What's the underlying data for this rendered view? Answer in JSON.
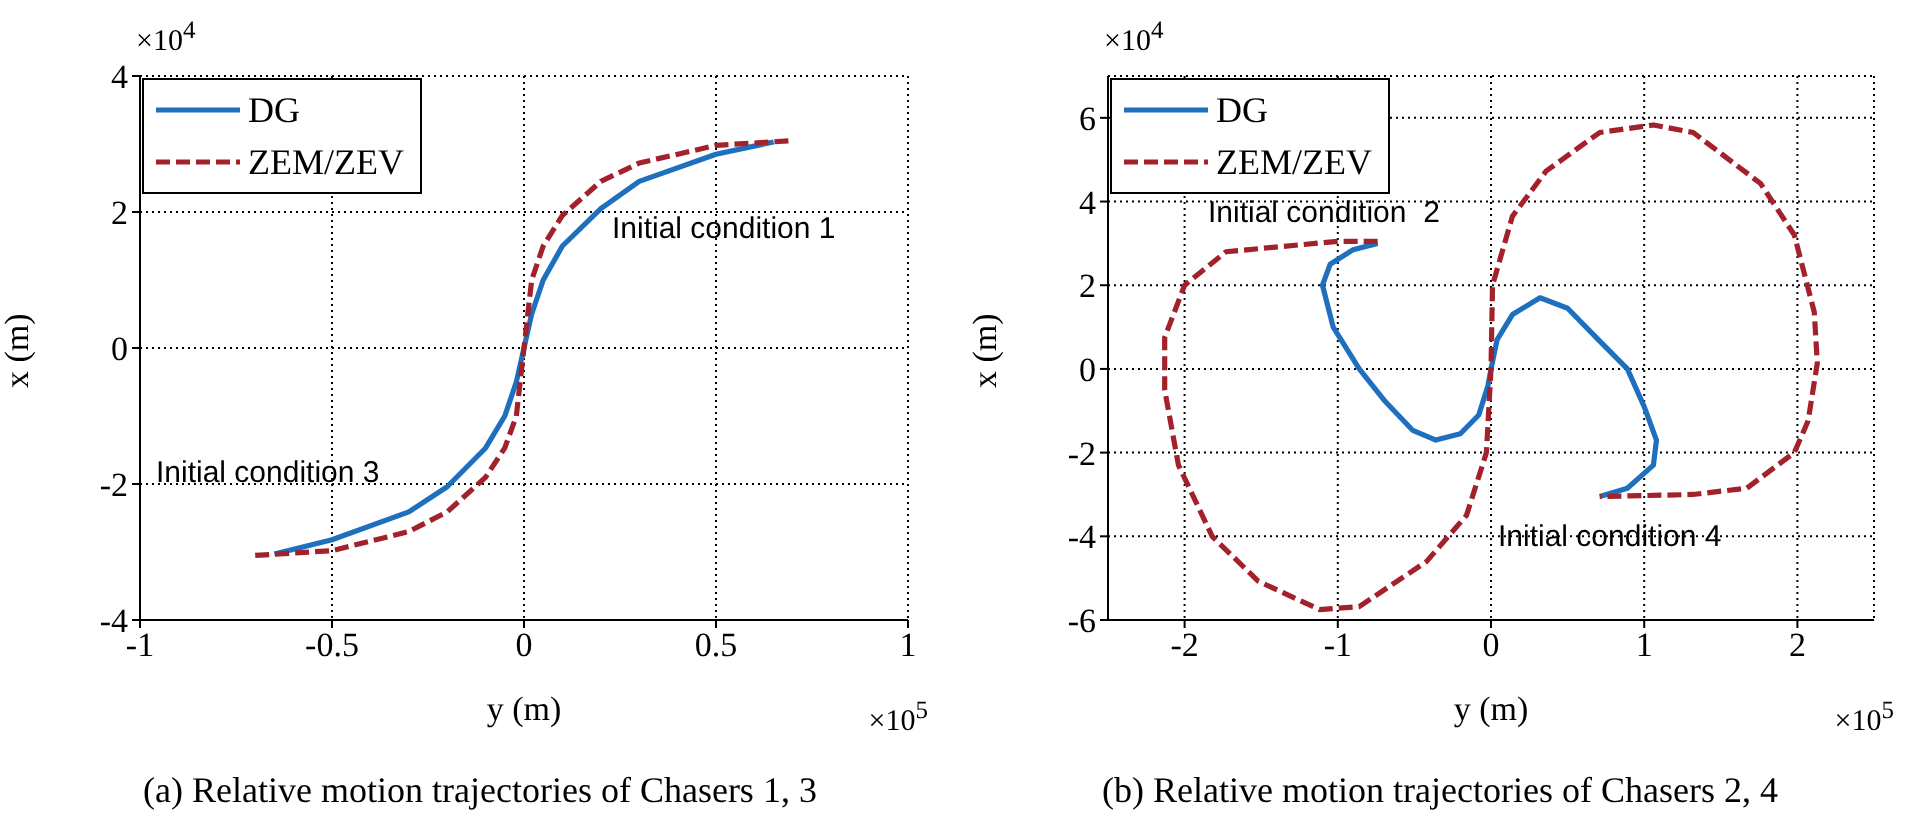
{
  "chart_data": [
    {
      "type": "line",
      "title": "(a) Relative motion trajectories of Chasers 1, 3",
      "xlabel": "y (m)",
      "ylabel": "x (m)",
      "xlim": [
        -1,
        1
      ],
      "xticks": [
        -1,
        -0.5,
        0,
        0.5,
        1
      ],
      "ylim": [
        -4,
        4
      ],
      "yticks": [
        -4,
        -2,
        0,
        2,
        4
      ],
      "grid": true,
      "legend": "top left",
      "marker": "none",
      "series": [
        {
          "name": "DG",
          "color": "#1f6fbf",
          "line_style": "solid",
          "x": [
            -0.65,
            -0.5,
            -0.3,
            -0.2,
            -0.1,
            -0.05,
            -0.02,
            0,
            0.02,
            0.05,
            0.1,
            0.2,
            0.3,
            0.5,
            0.65
          ],
          "values": [
            -3.03,
            -2.82,
            -2.41,
            -2.04,
            -1.47,
            -1.0,
            -0.5,
            0,
            0.5,
            1.0,
            1.5,
            2.05,
            2.45,
            2.85,
            3.03
          ]
        },
        {
          "name": "ZEM/ZEV",
          "color": "#a3212a",
          "line_style": "dashed",
          "x": [
            -0.7,
            -0.5,
            -0.3,
            -0.2,
            -0.1,
            -0.05,
            -0.02,
            0,
            0.02,
            0.05,
            0.1,
            0.2,
            0.3,
            0.5,
            0.7
          ],
          "values": [
            -3.05,
            -2.98,
            -2.7,
            -2.41,
            -1.9,
            -1.47,
            -1.0,
            0,
            1.0,
            1.5,
            1.95,
            2.45,
            2.72,
            2.98,
            3.05
          ]
        }
      ],
      "annotations": [
        "×10$^{4}$",
        "×10$^{5}$",
        "Initial condition 1",
        "Initial condition 3"
      ]
    },
    {
      "type": "line",
      "title": "(b) Relative motion trajectories of Chasers 2, 4",
      "xlabel": "y (m)",
      "ylabel": "x (m)",
      "xlim": [
        -2.5,
        2.5
      ],
      "xticks": [
        -2,
        -1,
        0,
        1,
        2
      ],
      "ylim": [
        -6,
        7
      ],
      "yticks": [
        -6,
        -4,
        -2,
        0,
        2,
        4,
        6
      ],
      "grid": true,
      "legend": "top left",
      "marker": "none",
      "series": [
        {
          "name": "DG",
          "color": "#1f6fbf",
          "line_style": "solid",
          "x": [
            -0.74,
            -0.9,
            -1.05,
            -1.1,
            -1.03,
            -0.86,
            -0.69,
            -0.51,
            -0.36,
            -0.2,
            -0.08,
            -0.02,
            0,
            0.04,
            0.14,
            0.32,
            0.5,
            0.7,
            0.89,
            1.0,
            1.08,
            1.06,
            0.89,
            0.71
          ],
          "values": [
            3.0,
            2.85,
            2.5,
            2.0,
            1.0,
            0,
            -0.78,
            -1.47,
            -1.7,
            -1.55,
            -1.1,
            -0.4,
            0,
            0.7,
            1.3,
            1.7,
            1.45,
            0.7,
            0,
            -0.9,
            -1.7,
            -2.3,
            -2.85,
            -3.05
          ]
        },
        {
          "name": "ZEM/ZEV",
          "color": "#a3212a",
          "line_style": "dashed",
          "x": [
            -0.74,
            -1.0,
            -1.73,
            -2.0,
            -2.13,
            -2.13,
            -2.04,
            -1.82,
            -1.52,
            -1.12,
            -0.86,
            -0.42,
            -0.16,
            -0.03,
            0,
            0.01,
            0.14,
            0.36,
            0.71,
            1.06,
            1.32,
            1.76,
            1.98,
            2.11,
            2.13,
            2.07,
            1.98,
            1.67,
            1.32,
            0.71
          ],
          "values": [
            3.05,
            3.05,
            2.8,
            2.0,
            0.75,
            -0.5,
            -2.3,
            -4.0,
            -5.07,
            -5.75,
            -5.68,
            -4.6,
            -3.5,
            -2.0,
            0,
            2.0,
            3.65,
            4.73,
            5.65,
            5.83,
            5.65,
            4.43,
            3.2,
            1.36,
            0.14,
            -1.24,
            -2.0,
            -2.85,
            -3.0,
            -3.05
          ]
        }
      ],
      "annotations": [
        "×10$^{4}$",
        "×10$^{5}$",
        "Initial condition  2",
        "Initial condition 4"
      ]
    }
  ]
}
